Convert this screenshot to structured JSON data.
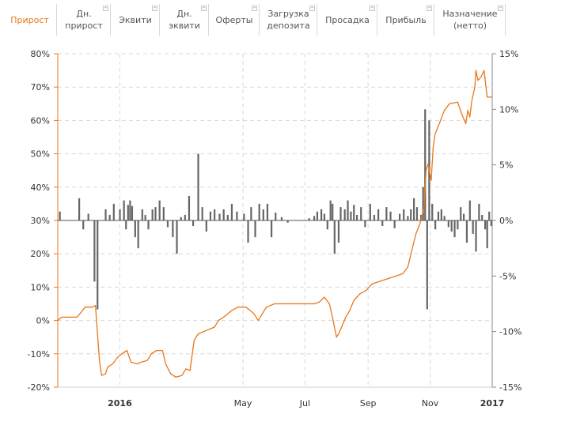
{
  "tabs": [
    {
      "label": "Прирост",
      "active": true
    },
    {
      "label": "Дн.\nприрост",
      "active": false
    },
    {
      "label": "Эквити",
      "active": false
    },
    {
      "label": "Дн.\nэквити",
      "active": false
    },
    {
      "label": "Оферты",
      "active": false
    },
    {
      "label": "Загрузка\nдепозита",
      "active": false
    },
    {
      "label": "Просадка",
      "active": false
    },
    {
      "label": "Прибыль",
      "active": false
    },
    {
      "label": "Назначение\n(нетто)",
      "active": false
    }
  ],
  "colors": {
    "accent": "#e8771a",
    "line": "#e8771a",
    "bars": "#666666",
    "grid": "#d9d9d9",
    "axis_right": "#888888"
  },
  "chart_data": {
    "type": "line",
    "title": "",
    "left_axis": {
      "min": -20,
      "max": 80,
      "step": 10,
      "unit": "%",
      "color": "#e8771a"
    },
    "right_axis": {
      "min": -15,
      "max": 15,
      "step": 5,
      "unit": "%",
      "color": "#888888"
    },
    "x_range": [
      "2015-11-01",
      "2017-01-01"
    ],
    "x_ticks": [
      {
        "label": "2016",
        "date": "2016-01-01",
        "bold": true
      },
      {
        "label": "May",
        "date": "2016-05-01",
        "bold": false
      },
      {
        "label": "Jul",
        "date": "2016-07-01",
        "bold": false
      },
      {
        "label": "Sep",
        "date": "2016-09-01",
        "bold": false
      },
      {
        "label": "Nov",
        "date": "2016-11-01",
        "bold": false
      },
      {
        "label": "2017",
        "date": "2017-01-01",
        "bold": true
      }
    ],
    "grid": true,
    "series": [
      {
        "kind": "line",
        "axis": "left",
        "points": [
          [
            "2015-11-01",
            0
          ],
          [
            "2015-11-05",
            1
          ],
          [
            "2015-11-20",
            1
          ],
          [
            "2015-11-28",
            4
          ],
          [
            "2015-12-05",
            4
          ],
          [
            "2015-12-08",
            4.5
          ],
          [
            "2015-12-12",
            -12
          ],
          [
            "2015-12-14",
            -16.5
          ],
          [
            "2015-12-18",
            -16
          ],
          [
            "2015-12-20",
            -14
          ],
          [
            "2015-12-25",
            -13
          ],
          [
            "2015-12-30",
            -11
          ],
          [
            "2016-01-03",
            -10
          ],
          [
            "2016-01-08",
            -9
          ],
          [
            "2016-01-12",
            -12.5
          ],
          [
            "2016-01-18",
            -13
          ],
          [
            "2016-01-22",
            -12.5
          ],
          [
            "2016-01-28",
            -12
          ],
          [
            "2016-02-01",
            -10
          ],
          [
            "2016-02-06",
            -9
          ],
          [
            "2016-02-12",
            -9
          ],
          [
            "2016-02-15",
            -13
          ],
          [
            "2016-02-20",
            -16
          ],
          [
            "2016-02-25",
            -17
          ],
          [
            "2016-03-02",
            -16.5
          ],
          [
            "2016-03-06",
            -14.5
          ],
          [
            "2016-03-10",
            -15
          ],
          [
            "2016-03-14",
            -6
          ],
          [
            "2016-03-18",
            -4
          ],
          [
            "2016-03-26",
            -3
          ],
          [
            "2016-04-03",
            -2
          ],
          [
            "2016-04-07",
            0
          ],
          [
            "2016-04-12",
            1
          ],
          [
            "2016-04-20",
            3
          ],
          [
            "2016-04-26",
            4
          ],
          [
            "2016-05-04",
            4
          ],
          [
            "2016-05-08",
            3
          ],
          [
            "2016-05-12",
            2
          ],
          [
            "2016-05-16",
            0
          ],
          [
            "2016-05-20",
            2
          ],
          [
            "2016-05-24",
            4
          ],
          [
            "2016-06-01",
            5
          ],
          [
            "2016-06-10",
            5
          ],
          [
            "2016-06-20",
            5
          ],
          [
            "2016-07-10",
            5
          ],
          [
            "2016-07-15",
            5.5
          ],
          [
            "2016-07-20",
            7
          ],
          [
            "2016-07-25",
            5
          ],
          [
            "2016-07-28",
            1
          ],
          [
            "2016-08-01",
            -5
          ],
          [
            "2016-08-03",
            -4
          ],
          [
            "2016-08-06",
            -2
          ],
          [
            "2016-08-10",
            1
          ],
          [
            "2016-08-14",
            3
          ],
          [
            "2016-08-18",
            6
          ],
          [
            "2016-08-24",
            8
          ],
          [
            "2016-08-30",
            9
          ],
          [
            "2016-09-05",
            11
          ],
          [
            "2016-09-15",
            12
          ],
          [
            "2016-09-25",
            13
          ],
          [
            "2016-10-05",
            14
          ],
          [
            "2016-10-10",
            16
          ],
          [
            "2016-10-14",
            21
          ],
          [
            "2016-10-18",
            26
          ],
          [
            "2016-10-22",
            29
          ],
          [
            "2016-10-26",
            34
          ],
          [
            "2016-10-28",
            45
          ],
          [
            "2016-10-30",
            47
          ],
          [
            "2016-11-02",
            42
          ],
          [
            "2016-11-04",
            52
          ],
          [
            "2016-11-06",
            56
          ],
          [
            "2016-11-10",
            59
          ],
          [
            "2016-11-15",
            63
          ],
          [
            "2016-11-20",
            65
          ],
          [
            "2016-11-28",
            65.5
          ],
          [
            "2016-12-02",
            62
          ],
          [
            "2016-12-06",
            59
          ],
          [
            "2016-12-08",
            63
          ],
          [
            "2016-12-10",
            61
          ],
          [
            "2016-12-12",
            66
          ],
          [
            "2016-12-15",
            70
          ],
          [
            "2016-12-16",
            75
          ],
          [
            "2016-12-18",
            72
          ],
          [
            "2016-12-21",
            73
          ],
          [
            "2016-12-24",
            75
          ],
          [
            "2016-12-27",
            67
          ],
          [
            "2017-01-01",
            67
          ]
        ]
      },
      {
        "kind": "bar",
        "axis": "right",
        "points": [
          [
            "2015-11-03",
            0.8
          ],
          [
            "2015-11-22",
            2.0
          ],
          [
            "2015-11-26",
            -0.8
          ],
          [
            "2015-12-01",
            0.6
          ],
          [
            "2015-12-07",
            -5.5
          ],
          [
            "2015-12-10",
            -8.0
          ],
          [
            "2015-12-18",
            1.0
          ],
          [
            "2015-12-22",
            0.5
          ],
          [
            "2015-12-26",
            1.5
          ],
          [
            "2016-01-01",
            1.0
          ],
          [
            "2016-01-05",
            1.8
          ],
          [
            "2016-01-07",
            -0.8
          ],
          [
            "2016-01-09",
            1.4
          ],
          [
            "2016-01-11",
            1.8
          ],
          [
            "2016-01-13",
            1.3
          ],
          [
            "2016-01-16",
            -1.5
          ],
          [
            "2016-01-19",
            -2.5
          ],
          [
            "2016-01-23",
            1.0
          ],
          [
            "2016-01-26",
            0.5
          ],
          [
            "2016-01-29",
            -0.8
          ],
          [
            "2016-02-02",
            1.0
          ],
          [
            "2016-02-05",
            1.2
          ],
          [
            "2016-02-09",
            1.8
          ],
          [
            "2016-02-13",
            1.2
          ],
          [
            "2016-02-17",
            -0.6
          ],
          [
            "2016-02-22",
            -1.5
          ],
          [
            "2016-02-26",
            -3.0
          ],
          [
            "2016-03-01",
            0.3
          ],
          [
            "2016-03-05",
            0.5
          ],
          [
            "2016-03-09",
            2.2
          ],
          [
            "2016-03-13",
            -0.5
          ],
          [
            "2016-03-18",
            6.0
          ],
          [
            "2016-03-22",
            1.2
          ],
          [
            "2016-03-26",
            -1.0
          ],
          [
            "2016-03-30",
            0.8
          ],
          [
            "2016-04-03",
            1.0
          ],
          [
            "2016-04-08",
            0.6
          ],
          [
            "2016-04-12",
            1.0
          ],
          [
            "2016-04-16",
            0.5
          ],
          [
            "2016-04-20",
            1.5
          ],
          [
            "2016-04-25",
            0.8
          ],
          [
            "2016-05-02",
            0.6
          ],
          [
            "2016-05-06",
            -2.0
          ],
          [
            "2016-05-09",
            1.2
          ],
          [
            "2016-05-13",
            -1.5
          ],
          [
            "2016-05-17",
            1.5
          ],
          [
            "2016-05-21",
            1.0
          ],
          [
            "2016-05-25",
            1.5
          ],
          [
            "2016-05-29",
            -1.5
          ],
          [
            "2016-06-02",
            0.7
          ],
          [
            "2016-06-08",
            0.3
          ],
          [
            "2016-06-14",
            -0.2
          ],
          [
            "2016-07-05",
            0.2
          ],
          [
            "2016-07-10",
            0.4
          ],
          [
            "2016-07-13",
            0.8
          ],
          [
            "2016-07-17",
            1.0
          ],
          [
            "2016-07-20",
            0.6
          ],
          [
            "2016-07-23",
            -0.8
          ],
          [
            "2016-07-26",
            1.8
          ],
          [
            "2016-07-28",
            1.5
          ],
          [
            "2016-07-30",
            -3.0
          ],
          [
            "2016-08-03",
            -2.0
          ],
          [
            "2016-08-05",
            1.2
          ],
          [
            "2016-08-09",
            1.0
          ],
          [
            "2016-08-12",
            1.8
          ],
          [
            "2016-08-15",
            0.8
          ],
          [
            "2016-08-18",
            1.4
          ],
          [
            "2016-08-21",
            0.5
          ],
          [
            "2016-08-25",
            1.2
          ],
          [
            "2016-08-29",
            -0.6
          ],
          [
            "2016-09-03",
            1.5
          ],
          [
            "2016-09-07",
            0.5
          ],
          [
            "2016-09-11",
            1.0
          ],
          [
            "2016-09-15",
            -0.5
          ],
          [
            "2016-09-19",
            1.2
          ],
          [
            "2016-09-23",
            0.8
          ],
          [
            "2016-09-27",
            -0.7
          ],
          [
            "2016-10-02",
            0.6
          ],
          [
            "2016-10-06",
            1.0
          ],
          [
            "2016-10-10",
            0.4
          ],
          [
            "2016-10-13",
            1.0
          ],
          [
            "2016-10-16",
            2.0
          ],
          [
            "2016-10-19",
            1.2
          ],
          [
            "2016-10-23",
            0.5
          ],
          [
            "2016-10-25",
            3.0
          ],
          [
            "2016-10-27",
            10.0
          ],
          [
            "2016-10-29",
            -8.0
          ],
          [
            "2016-10-31",
            9.0
          ],
          [
            "2016-11-03",
            1.5
          ],
          [
            "2016-11-06",
            -0.8
          ],
          [
            "2016-11-09",
            0.8
          ],
          [
            "2016-11-12",
            1.0
          ],
          [
            "2016-11-15",
            0.4
          ],
          [
            "2016-11-19",
            -0.6
          ],
          [
            "2016-11-22",
            -1.0
          ],
          [
            "2016-11-25",
            -1.5
          ],
          [
            "2016-11-28",
            -0.8
          ],
          [
            "2016-12-01",
            1.2
          ],
          [
            "2016-12-04",
            0.6
          ],
          [
            "2016-12-07",
            -2.0
          ],
          [
            "2016-12-10",
            1.8
          ],
          [
            "2016-12-13",
            -1.2
          ],
          [
            "2016-12-16",
            -2.8
          ],
          [
            "2016-12-19",
            1.5
          ],
          [
            "2016-12-22",
            0.5
          ],
          [
            "2016-12-25",
            -0.8
          ],
          [
            "2016-12-27",
            -2.5
          ],
          [
            "2016-12-29",
            0.8
          ],
          [
            "2016-12-31",
            -0.5
          ]
        ]
      }
    ]
  }
}
